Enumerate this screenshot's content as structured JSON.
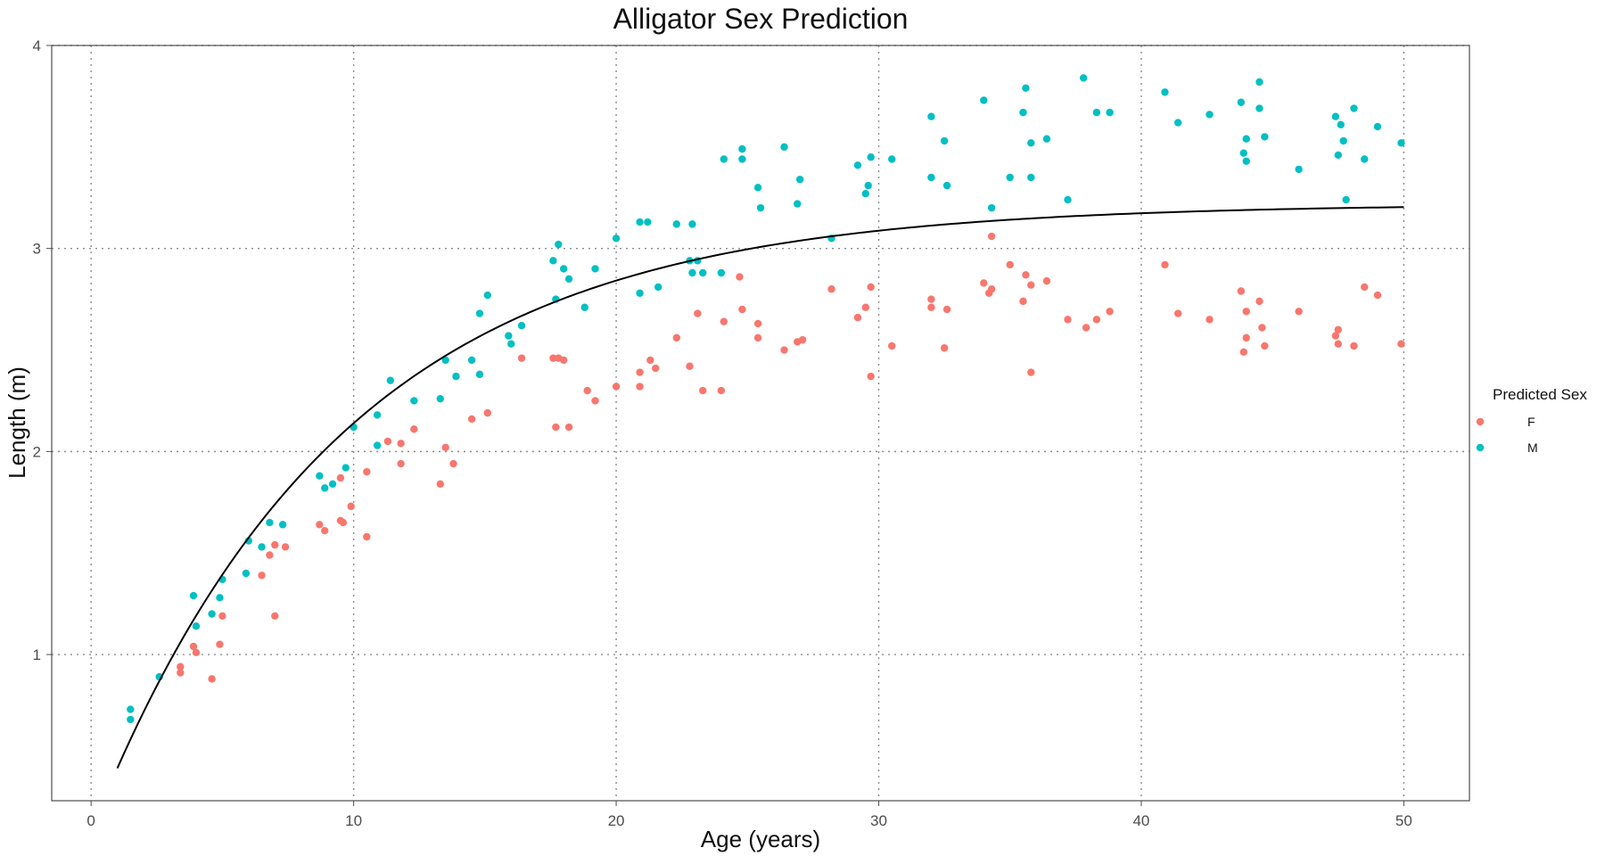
{
  "chart_data": {
    "type": "scatter",
    "title": "Alligator Sex Prediction",
    "xlabel": "Age (years)",
    "ylabel": "Length (m)",
    "xlim": [
      -1.5,
      52.5
    ],
    "ylim": [
      0.28,
      4.0
    ],
    "x_ticks": [
      "0",
      "10",
      "20",
      "30",
      "40",
      "50"
    ],
    "y_ticks": [
      "1",
      "2",
      "3",
      "4"
    ],
    "grid": "dotted",
    "legend": {
      "title": "Predicted Sex",
      "position": "right",
      "entries": [
        {
          "label": "F",
          "color": "#F8766D"
        },
        {
          "label": "M",
          "color": "#00BFC4"
        }
      ]
    },
    "curve": {
      "type": "von-bertalanffy",
      "color": "#000000",
      "x_range": [
        1,
        50
      ],
      "points": [
        [
          1,
          0.45
        ],
        [
          2,
          0.7
        ],
        [
          3,
          0.93
        ],
        [
          4,
          1.14
        ],
        [
          5,
          1.33
        ],
        [
          6,
          1.5
        ],
        [
          8,
          1.8
        ],
        [
          10,
          2.05
        ],
        [
          12,
          2.26
        ],
        [
          14,
          2.43
        ],
        [
          16,
          2.57
        ],
        [
          18,
          2.69
        ],
        [
          20,
          2.78
        ],
        [
          22,
          2.86
        ],
        [
          24,
          2.93
        ],
        [
          26,
          2.98
        ],
        [
          28,
          3.02
        ],
        [
          30,
          3.06
        ],
        [
          32,
          3.09
        ],
        [
          34,
          3.11
        ],
        [
          36,
          3.13
        ],
        [
          38,
          3.15
        ],
        [
          40,
          3.16
        ],
        [
          42,
          3.17
        ],
        [
          44,
          3.18
        ],
        [
          46,
          3.19
        ],
        [
          48,
          3.2
        ],
        [
          50,
          3.2
        ]
      ]
    },
    "series": [
      {
        "name": "F",
        "color": "#F8766D",
        "points": [
          [
            3.4,
            0.94
          ],
          [
            3.4,
            0.91
          ],
          [
            3.9,
            1.04
          ],
          [
            4.0,
            1.01
          ],
          [
            4.6,
            0.88
          ],
          [
            4.9,
            1.05
          ],
          [
            5.0,
            1.19
          ],
          [
            6.5,
            1.39
          ],
          [
            6.8,
            1.49
          ],
          [
            7.0,
            1.19
          ],
          [
            7.0,
            1.54
          ],
          [
            7.4,
            1.53
          ],
          [
            8.7,
            1.64
          ],
          [
            8.9,
            1.61
          ],
          [
            9.5,
            1.66
          ],
          [
            9.6,
            1.65
          ],
          [
            9.5,
            1.87
          ],
          [
            9.9,
            1.73
          ],
          [
            10.5,
            1.9
          ],
          [
            10.5,
            1.58
          ],
          [
            11.3,
            2.05
          ],
          [
            11.8,
            2.04
          ],
          [
            11.8,
            1.94
          ],
          [
            12.3,
            2.11
          ],
          [
            13.3,
            1.84
          ],
          [
            13.5,
            2.02
          ],
          [
            13.8,
            1.94
          ],
          [
            14.5,
            2.16
          ],
          [
            15.1,
            2.19
          ],
          [
            16.4,
            2.46
          ],
          [
            17.6,
            2.46
          ],
          [
            17.8,
            2.46
          ],
          [
            17.7,
            2.12
          ],
          [
            18.0,
            2.45
          ],
          [
            18.2,
            2.12
          ],
          [
            18.9,
            2.3
          ],
          [
            19.2,
            2.25
          ],
          [
            20.0,
            2.32
          ],
          [
            20.9,
            2.39
          ],
          [
            20.9,
            2.32
          ],
          [
            21.3,
            2.45
          ],
          [
            21.5,
            2.41
          ],
          [
            22.3,
            2.56
          ],
          [
            22.8,
            2.42
          ],
          [
            23.1,
            2.68
          ],
          [
            23.3,
            2.3
          ],
          [
            24.0,
            2.3
          ],
          [
            24.1,
            2.64
          ],
          [
            24.7,
            2.86
          ],
          [
            24.8,
            2.7
          ],
          [
            25.4,
            2.56
          ],
          [
            25.4,
            2.63
          ],
          [
            26.4,
            2.5
          ],
          [
            26.9,
            2.54
          ],
          [
            27.1,
            2.55
          ],
          [
            28.2,
            2.8
          ],
          [
            29.2,
            2.66
          ],
          [
            29.5,
            2.71
          ],
          [
            29.7,
            2.81
          ],
          [
            29.7,
            2.37
          ],
          [
            30.5,
            2.52
          ],
          [
            32.0,
            2.75
          ],
          [
            32.0,
            2.71
          ],
          [
            32.5,
            2.51
          ],
          [
            32.6,
            2.7
          ],
          [
            34.0,
            2.83
          ],
          [
            34.2,
            2.78
          ],
          [
            34.3,
            2.8
          ],
          [
            34.3,
            3.06
          ],
          [
            35.0,
            2.92
          ],
          [
            35.5,
            2.74
          ],
          [
            35.6,
            2.87
          ],
          [
            35.8,
            2.82
          ],
          [
            35.8,
            2.39
          ],
          [
            36.4,
            2.84
          ],
          [
            37.2,
            2.65
          ],
          [
            37.9,
            2.61
          ],
          [
            38.3,
            2.65
          ],
          [
            38.8,
            2.69
          ],
          [
            40.9,
            2.92
          ],
          [
            41.4,
            2.68
          ],
          [
            42.6,
            2.65
          ],
          [
            43.8,
            2.79
          ],
          [
            43.9,
            2.49
          ],
          [
            44.0,
            2.69
          ],
          [
            44.0,
            2.56
          ],
          [
            44.5,
            2.74
          ],
          [
            44.6,
            2.61
          ],
          [
            44.7,
            2.52
          ],
          [
            46.0,
            2.69
          ],
          [
            47.4,
            2.57
          ],
          [
            47.5,
            2.6
          ],
          [
            47.5,
            2.53
          ],
          [
            48.1,
            2.52
          ],
          [
            48.5,
            2.81
          ],
          [
            49.0,
            2.77
          ],
          [
            49.9,
            2.53
          ]
        ]
      },
      {
        "name": "M",
        "color": "#00BFC4",
        "points": [
          [
            1.5,
            0.73
          ],
          [
            1.5,
            0.68
          ],
          [
            2.6,
            0.89
          ],
          [
            3.9,
            1.29
          ],
          [
            4.0,
            1.14
          ],
          [
            4.6,
            1.2
          ],
          [
            4.9,
            1.28
          ],
          [
            5.0,
            1.37
          ],
          [
            5.9,
            1.4
          ],
          [
            6.0,
            1.56
          ],
          [
            6.5,
            1.53
          ],
          [
            6.8,
            1.65
          ],
          [
            7.3,
            1.64
          ],
          [
            8.7,
            1.88
          ],
          [
            8.9,
            1.82
          ],
          [
            9.2,
            1.84
          ],
          [
            9.7,
            1.92
          ],
          [
            10.0,
            2.12
          ],
          [
            10.9,
            2.03
          ],
          [
            10.9,
            2.18
          ],
          [
            11.4,
            2.35
          ],
          [
            12.3,
            2.25
          ],
          [
            13.3,
            2.26
          ],
          [
            13.5,
            2.45
          ],
          [
            13.9,
            2.37
          ],
          [
            14.5,
            2.45
          ],
          [
            14.8,
            2.38
          ],
          [
            14.8,
            2.68
          ],
          [
            15.1,
            2.77
          ],
          [
            15.9,
            2.57
          ],
          [
            16.0,
            2.53
          ],
          [
            16.4,
            2.62
          ],
          [
            17.6,
            2.94
          ],
          [
            17.8,
            3.02
          ],
          [
            17.7,
            2.75
          ],
          [
            18.0,
            2.9
          ],
          [
            18.2,
            2.85
          ],
          [
            18.8,
            2.71
          ],
          [
            19.2,
            2.9
          ],
          [
            20.0,
            3.05
          ],
          [
            20.9,
            3.13
          ],
          [
            20.9,
            2.78
          ],
          [
            21.2,
            3.13
          ],
          [
            21.6,
            2.81
          ],
          [
            22.3,
            3.12
          ],
          [
            22.8,
            2.94
          ],
          [
            22.9,
            3.12
          ],
          [
            22.9,
            2.88
          ],
          [
            23.1,
            2.94
          ],
          [
            23.3,
            2.88
          ],
          [
            24.0,
            2.88
          ],
          [
            24.1,
            3.44
          ],
          [
            24.8,
            3.49
          ],
          [
            24.8,
            3.44
          ],
          [
            25.4,
            3.3
          ],
          [
            25.5,
            3.2
          ],
          [
            26.4,
            3.5
          ],
          [
            26.9,
            3.22
          ],
          [
            27.0,
            3.34
          ],
          [
            28.2,
            3.05
          ],
          [
            29.2,
            3.41
          ],
          [
            29.5,
            3.27
          ],
          [
            29.6,
            3.31
          ],
          [
            29.7,
            3.45
          ],
          [
            30.5,
            3.44
          ],
          [
            32.0,
            3.65
          ],
          [
            32.0,
            3.35
          ],
          [
            32.5,
            3.53
          ],
          [
            32.6,
            3.31
          ],
          [
            34.0,
            3.73
          ],
          [
            34.3,
            3.2
          ],
          [
            35.0,
            3.35
          ],
          [
            35.5,
            3.67
          ],
          [
            35.6,
            3.79
          ],
          [
            35.8,
            3.52
          ],
          [
            35.8,
            3.35
          ],
          [
            36.4,
            3.54
          ],
          [
            37.2,
            3.24
          ],
          [
            37.8,
            3.84
          ],
          [
            38.3,
            3.67
          ],
          [
            38.8,
            3.67
          ],
          [
            40.9,
            3.77
          ],
          [
            41.4,
            3.62
          ],
          [
            42.6,
            3.66
          ],
          [
            43.8,
            3.72
          ],
          [
            43.9,
            3.47
          ],
          [
            44.0,
            3.43
          ],
          [
            44.0,
            3.54
          ],
          [
            44.5,
            3.82
          ],
          [
            44.5,
            3.69
          ],
          [
            44.7,
            3.55
          ],
          [
            46.0,
            3.39
          ],
          [
            47.4,
            3.65
          ],
          [
            47.5,
            3.46
          ],
          [
            47.6,
            3.61
          ],
          [
            47.7,
            3.53
          ],
          [
            47.8,
            3.24
          ],
          [
            48.1,
            3.69
          ],
          [
            48.5,
            3.44
          ],
          [
            49.0,
            3.6
          ],
          [
            49.9,
            3.52
          ]
        ]
      }
    ]
  }
}
